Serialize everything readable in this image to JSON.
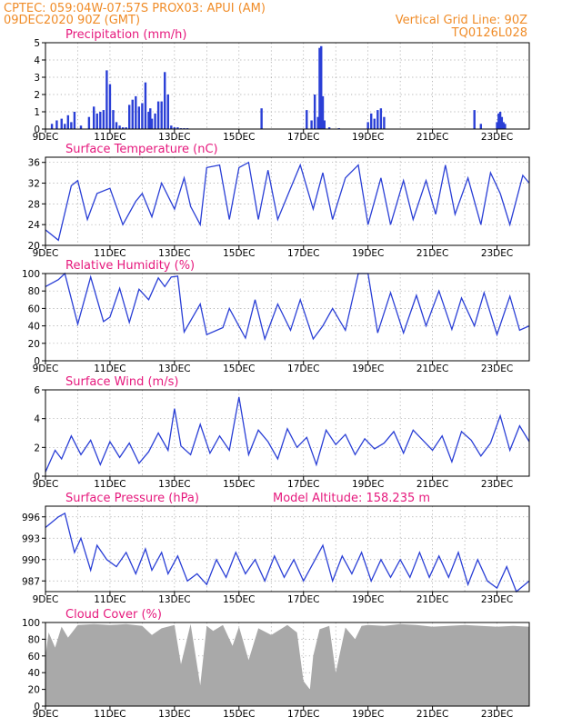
{
  "header": {
    "line1_left": "CPTEC:   059:04W-07:57S   PROX03: APUI (AM)",
    "line2_left": "09DEC2020 90Z (GMT)",
    "line1_right": "Vertical Grid Line: 90Z",
    "line2_right": "TQ0126L028"
  },
  "colors": {
    "header": "#f08c28",
    "title": "#e6197d",
    "series": "#2a3fd6",
    "cloud": "#a9a9a9",
    "grid": "#9a9a9a"
  },
  "chart_data": [
    {
      "id": "precip",
      "type": "bar",
      "title": "Precipitation  (mm/h)",
      "ylim": [
        0,
        5
      ],
      "yticks": [
        0,
        1,
        2,
        3,
        4,
        5
      ],
      "xticks": [
        "9DEC",
        "11DEC",
        "13DEC",
        "15DEC",
        "17DEC",
        "19DEC",
        "21DEC",
        "23DEC"
      ],
      "xrange_days": [
        0,
        15
      ],
      "color": "#2a3fd6",
      "grid": true,
      "series": [
        {
          "x": [
            0.2,
            0.35,
            0.5,
            0.6,
            0.7,
            0.8,
            0.9,
            1.1,
            1.35,
            1.5,
            1.6,
            1.7,
            1.8,
            1.9,
            2.0,
            2.1,
            2.2,
            2.3,
            2.4,
            2.5,
            2.6,
            2.7,
            2.8,
            2.9,
            3.0,
            3.1,
            3.2,
            3.25,
            3.3,
            3.4,
            3.5,
            3.6,
            3.7,
            3.8,
            3.9,
            4.0,
            4.1,
            4.2,
            4.3,
            4.4,
            6.7,
            8.1,
            8.25,
            8.35,
            8.45,
            8.5,
            8.55,
            8.6,
            8.65,
            8.8,
            9.1,
            10.0,
            10.1,
            10.2,
            10.3,
            10.4,
            10.5,
            13.3,
            13.5,
            14.0,
            14.05,
            14.1,
            14.15,
            14.2,
            14.25
          ],
          "values": [
            0.3,
            0.5,
            0.6,
            0.3,
            0.8,
            0.4,
            1.0,
            0.2,
            0.7,
            1.3,
            0.9,
            1.0,
            1.1,
            3.4,
            2.6,
            1.1,
            0.4,
            0.2,
            0.1,
            0.1,
            1.4,
            1.7,
            1.9,
            1.3,
            1.5,
            2.7,
            1.0,
            1.2,
            0.6,
            0.9,
            1.6,
            1.6,
            3.3,
            2.0,
            0.2,
            0.1,
            0.1,
            0.05,
            0.05,
            0.05,
            1.2,
            1.1,
            0.5,
            2.0,
            0.7,
            4.7,
            4.8,
            1.9,
            0.5,
            0.1,
            0.05,
            0.4,
            0.9,
            0.6,
            1.1,
            1.2,
            0.7,
            1.1,
            0.3,
            0.4,
            0.9,
            1.0,
            0.7,
            0.4,
            0.3
          ]
        }
      ]
    },
    {
      "id": "temp",
      "type": "line",
      "title": "Surface Temperature (nC)",
      "ylim": [
        20,
        37
      ],
      "yticks": [
        20,
        24,
        28,
        32,
        36
      ],
      "xticks": [
        "9DEC",
        "11DEC",
        "13DEC",
        "15DEC",
        "17DEC",
        "19DEC",
        "21DEC",
        "23DEC"
      ],
      "xrange_days": [
        0,
        15
      ],
      "color": "#2a3fd6",
      "grid": true,
      "series": [
        {
          "x": [
            0,
            0.4,
            0.8,
            1.0,
            1.3,
            1.6,
            2.0,
            2.4,
            2.8,
            3.0,
            3.3,
            3.6,
            4.0,
            4.3,
            4.5,
            4.8,
            5.0,
            5.4,
            5.7,
            6.0,
            6.3,
            6.6,
            6.9,
            7.2,
            7.6,
            7.9,
            8.3,
            8.6,
            8.9,
            9.3,
            9.7,
            10.0,
            10.4,
            10.7,
            11.1,
            11.4,
            11.8,
            12.1,
            12.4,
            12.7,
            13.1,
            13.5,
            13.8,
            14.1,
            14.4,
            14.8,
            15.0
          ],
          "values": [
            23,
            21,
            31.5,
            32.5,
            25,
            30,
            31,
            24,
            28.5,
            30,
            25.5,
            32,
            27,
            33,
            27.5,
            24,
            35,
            35.5,
            25,
            35,
            36,
            25,
            34.5,
            25,
            31,
            35.5,
            27,
            34,
            25,
            33,
            35.5,
            24,
            33,
            24,
            32.5,
            25,
            32.5,
            26,
            35.5,
            26,
            33,
            24,
            34,
            30,
            24,
            33.5,
            32
          ]
        }
      ]
    },
    {
      "id": "rh",
      "type": "line",
      "title": "Relative Humidity (%)",
      "ylim": [
        0,
        100
      ],
      "yticks": [
        0,
        20,
        40,
        60,
        80,
        100
      ],
      "xticks": [
        "9DEC",
        "11DEC",
        "13DEC",
        "15DEC",
        "17DEC",
        "19DEC",
        "21DEC",
        "23DEC"
      ],
      "xrange_days": [
        0,
        15
      ],
      "color": "#2a3fd6",
      "grid": true,
      "series": [
        {
          "x": [
            0,
            0.4,
            0.6,
            1.0,
            1.4,
            1.8,
            2.0,
            2.3,
            2.6,
            2.9,
            3.2,
            3.5,
            3.7,
            3.9,
            4.1,
            4.3,
            4.8,
            5.0,
            5.5,
            5.7,
            6.2,
            6.5,
            6.8,
            7.2,
            7.6,
            7.9,
            8.3,
            8.6,
            8.9,
            9.3,
            9.7,
            10.0,
            10.3,
            10.7,
            11.1,
            11.5,
            11.8,
            12.2,
            12.6,
            12.9,
            13.3,
            13.6,
            14.0,
            14.4,
            14.7,
            15.0
          ],
          "values": [
            85,
            93,
            100,
            42,
            96,
            45,
            50,
            83,
            44,
            82,
            70,
            95,
            85,
            96,
            97,
            33,
            65,
            30,
            38,
            60,
            26,
            70,
            25,
            65,
            35,
            70,
            25,
            40,
            60,
            35,
            100,
            100,
            32,
            78,
            32,
            75,
            40,
            80,
            36,
            72,
            40,
            78,
            30,
            74,
            35,
            40
          ]
        }
      ]
    },
    {
      "id": "wind",
      "type": "line",
      "title": "Surface Wind (m/s)",
      "ylim": [
        0,
        6
      ],
      "yticks": [
        0,
        2,
        4,
        6
      ],
      "xticks": [
        "9DEC",
        "11DEC",
        "13DEC",
        "15DEC",
        "17DEC",
        "19DEC",
        "21DEC",
        "23DEC"
      ],
      "xrange_days": [
        0,
        15
      ],
      "color": "#2a3fd6",
      "grid": true,
      "series": [
        {
          "x": [
            0,
            0.3,
            0.5,
            0.8,
            1.1,
            1.4,
            1.7,
            2.0,
            2.3,
            2.6,
            2.9,
            3.2,
            3.5,
            3.8,
            4.0,
            4.2,
            4.5,
            4.8,
            5.1,
            5.4,
            5.7,
            6.0,
            6.3,
            6.6,
            6.9,
            7.2,
            7.5,
            7.8,
            8.1,
            8.4,
            8.7,
            9.0,
            9.3,
            9.6,
            9.9,
            10.2,
            10.5,
            10.8,
            11.1,
            11.4,
            11.7,
            12.0,
            12.3,
            12.6,
            12.9,
            13.2,
            13.5,
            13.8,
            14.1,
            14.4,
            14.7,
            15.0
          ],
          "values": [
            0.3,
            1.8,
            1.2,
            2.8,
            1.5,
            2.5,
            0.8,
            2.4,
            1.3,
            2.3,
            0.9,
            1.7,
            3.0,
            1.8,
            4.7,
            2.1,
            1.5,
            3.6,
            1.6,
            2.8,
            1.8,
            5.5,
            1.5,
            3.2,
            2.4,
            1.2,
            3.3,
            2.0,
            2.7,
            0.8,
            3.2,
            2.2,
            2.9,
            1.5,
            2.6,
            1.9,
            2.3,
            3.1,
            1.6,
            3.2,
            2.5,
            1.8,
            2.8,
            1.0,
            3.1,
            2.5,
            1.4,
            2.3,
            4.2,
            1.8,
            3.5,
            2.4
          ]
        }
      ]
    },
    {
      "id": "pressure",
      "type": "line",
      "title": "Surface Pressure (hPa)",
      "annotation": "Model Altitude: 158.235  m",
      "ylim": [
        985.5,
        997.5
      ],
      "yticks": [
        987,
        990,
        993,
        996
      ],
      "xticks": [
        "9DEC",
        "11DEC",
        "13DEC",
        "15DEC",
        "17DEC",
        "19DEC",
        "21DEC",
        "23DEC"
      ],
      "xrange_days": [
        0,
        15
      ],
      "color": "#2a3fd6",
      "grid": true,
      "series": [
        {
          "x": [
            0,
            0.4,
            0.6,
            0.9,
            1.1,
            1.4,
            1.6,
            1.9,
            2.2,
            2.5,
            2.8,
            3.1,
            3.3,
            3.6,
            3.8,
            4.1,
            4.4,
            4.7,
            5.0,
            5.3,
            5.6,
            5.9,
            6.2,
            6.5,
            6.8,
            7.1,
            7.4,
            7.7,
            8.0,
            8.3,
            8.6,
            8.9,
            9.2,
            9.5,
            9.8,
            10.1,
            10.4,
            10.7,
            11.0,
            11.3,
            11.6,
            11.9,
            12.2,
            12.5,
            12.8,
            13.1,
            13.4,
            13.7,
            14.0,
            14.3,
            14.6,
            15.0
          ],
          "values": [
            994.5,
            996,
            996.5,
            991,
            993,
            988.5,
            992,
            990,
            989,
            991,
            988,
            991.5,
            988.5,
            991,
            988,
            990.5,
            987,
            988,
            986.5,
            990,
            987.5,
            991,
            988,
            990,
            987,
            990.5,
            987.5,
            990,
            987,
            989.5,
            992,
            987,
            990.5,
            988,
            991,
            987,
            990,
            987.5,
            990,
            987.5,
            991,
            987.5,
            990.5,
            987.5,
            991,
            986.5,
            990,
            987,
            986,
            989,
            985.5,
            987
          ]
        }
      ]
    },
    {
      "id": "cloud",
      "type": "area",
      "title": "Cloud Cover (%)",
      "ylim": [
        0,
        100
      ],
      "yticks": [
        0,
        20,
        40,
        60,
        80,
        100
      ],
      "xticks": [
        "9DEC",
        "11DEC",
        "13DEC",
        "15DEC",
        "17DEC",
        "19DEC",
        "21DEC",
        "23DEC"
      ],
      "xrange_days": [
        0,
        15
      ],
      "color": "#a9a9a9",
      "grid": true,
      "series": [
        {
          "x": [
            0,
            0.1,
            0.3,
            0.5,
            0.7,
            1.0,
            1.5,
            2.0,
            2.5,
            3.0,
            3.3,
            3.6,
            4.0,
            4.2,
            4.5,
            4.8,
            5.0,
            5.2,
            5.5,
            5.8,
            6.0,
            6.3,
            6.6,
            7.0,
            7.5,
            7.8,
            8.0,
            8.2,
            8.3,
            8.5,
            8.8,
            9.0,
            9.3,
            9.6,
            9.8,
            10.0,
            10.5,
            11.0,
            11.5,
            12.0,
            12.5,
            13.0,
            13.5,
            14.0,
            14.5,
            15.0
          ],
          "values": [
            60,
            88,
            70,
            95,
            82,
            97,
            98,
            97,
            98,
            96,
            85,
            93,
            97,
            50,
            98,
            25,
            96,
            90,
            97,
            72,
            95,
            55,
            93,
            85,
            97,
            88,
            30,
            20,
            60,
            92,
            96,
            40,
            94,
            80,
            96,
            97,
            96,
            98,
            97,
            95,
            96,
            97,
            96,
            95,
            96,
            95
          ]
        }
      ]
    }
  ]
}
